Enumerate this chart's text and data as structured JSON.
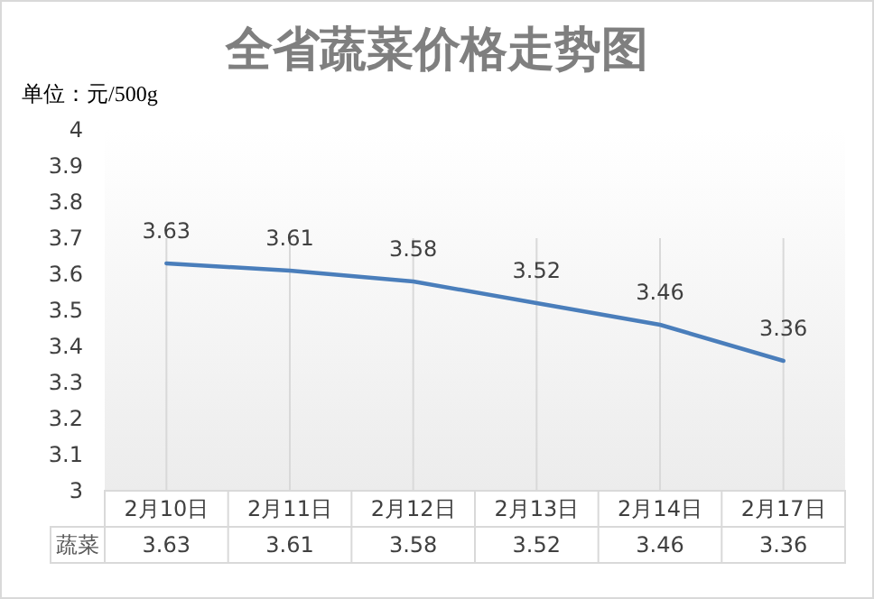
{
  "chart_data": {
    "type": "line",
    "title": "全省蔬菜价格走势图",
    "ylabel": "单位：元/500g",
    "categories": [
      "2月10日",
      "2月11日",
      "2月12日",
      "2月13日",
      "2月14日",
      "2月17日"
    ],
    "series": [
      {
        "name": "蔬菜",
        "color": "#4a7ebb",
        "values": [
          3.63,
          3.61,
          3.58,
          3.52,
          3.46,
          3.36
        ],
        "value_labels": [
          "3.63",
          "3.61",
          "3.58",
          "3.52",
          "3.46",
          "3.36"
        ]
      }
    ],
    "ylim": [
      3,
      4
    ],
    "yticks": [
      3,
      3.1,
      3.2,
      3.3,
      3.4,
      3.5,
      3.6,
      3.7,
      3.8,
      3.9,
      4
    ],
    "annotations": [
      "3.63",
      "3.61",
      "3.58",
      "3.52",
      "3.46",
      "3.36"
    ],
    "grid": "x",
    "legend": false,
    "marker": "none",
    "line_style": "solid"
  }
}
